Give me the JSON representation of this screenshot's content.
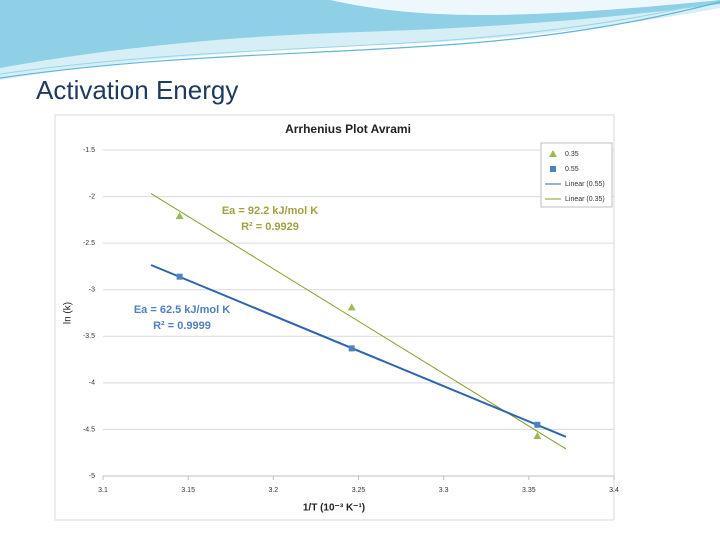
{
  "slide_title": "Activation Energy",
  "chart_data": {
    "type": "scatter",
    "title": "Arrhenius Plot Avrami",
    "x_label": "1/T (10⁻³ K⁻¹)",
    "y_label": "ln (k)",
    "x": [
      3.145,
      3.246,
      3.355
    ],
    "series": [
      {
        "name": "0.35",
        "color": "#9bbb59",
        "line_color": "#7f9f2a",
        "marker": "triangle",
        "trendline": "Linear (0.35)",
        "values": [
          -2.21,
          -3.19,
          -4.57
        ]
      },
      {
        "name": "0.55",
        "color": "#4f81bd",
        "line_color": "#2e64b0",
        "marker": "square",
        "trendline": "Linear (0.55)",
        "values": [
          -2.86,
          -3.63,
          -4.45
        ]
      }
    ],
    "annotations": [
      {
        "lines": [
          "Ea = 92.2 kJ/mol K",
          "R² = 0.9929"
        ],
        "color": "#a3a040"
      },
      {
        "lines": [
          "Ea = 62.5 kJ/mol K",
          "R² = 0.9999"
        ],
        "color": "#4f81bd"
      }
    ],
    "xlim": [
      3.1,
      3.4
    ],
    "xticks": [
      3.1,
      3.15,
      3.2,
      3.25,
      3.3,
      3.35,
      3.4
    ],
    "ylim": [
      -5,
      -1.5
    ],
    "yticks": [
      -1.5,
      -2,
      -2.5,
      -3,
      -3.5,
      -4,
      -4.5,
      -5
    ],
    "grid": true,
    "legend": "top-right"
  }
}
